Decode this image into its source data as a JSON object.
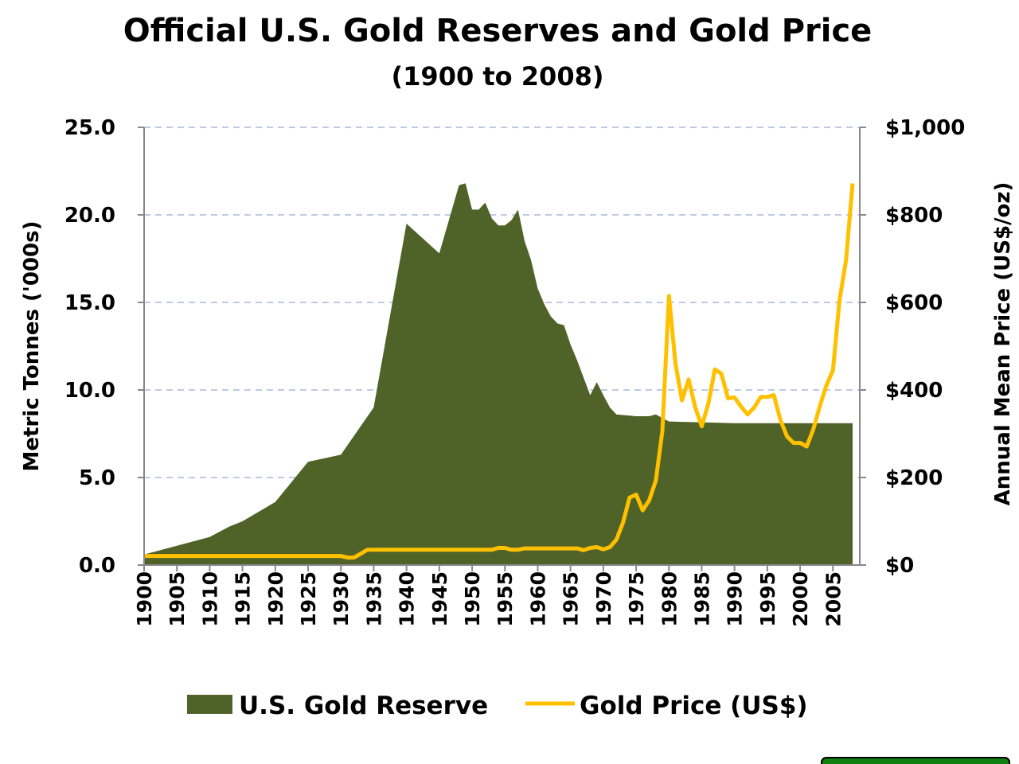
{
  "chart_data": {
    "type": "area+line",
    "title": "Official U.S. Gold Reserves and Gold Price",
    "subtitle": "(1900 to 2008)",
    "ylabel": "Metric Tonnes ('000s)",
    "y2label": "Annual Mean Price (US$/oz)",
    "xlim": [
      1900,
      2008
    ],
    "ylim": [
      0,
      25
    ],
    "y2lim": [
      0,
      1000
    ],
    "x_ticks": [
      "1900",
      "1905",
      "1910",
      "1915",
      "1920",
      "1925",
      "1930",
      "1935",
      "1940",
      "1945",
      "1950",
      "1955",
      "1960",
      "1965",
      "1970",
      "1975",
      "1980",
      "1985",
      "1990",
      "1995",
      "2000",
      "2005"
    ],
    "y_ticks": [
      "0.0",
      "5.0",
      "10.0",
      "15.0",
      "20.0",
      "25.0"
    ],
    "y2_ticks": [
      "$0",
      "$200",
      "$400",
      "$600",
      "$800",
      "$1,000"
    ],
    "grid": "horizontal dashed",
    "legend_placement": "bottom",
    "series": [
      {
        "name": "U.S. Gold Reserve",
        "type": "area",
        "axis": "left",
        "color": "#4f6228",
        "points": [
          [
            1900,
            0.6
          ],
          [
            1905,
            1.1
          ],
          [
            1910,
            1.6
          ],
          [
            1913,
            2.2
          ],
          [
            1915,
            2.5
          ],
          [
            1920,
            3.6
          ],
          [
            1925,
            5.9
          ],
          [
            1930,
            6.3
          ],
          [
            1935,
            9.0
          ],
          [
            1940,
            19.5
          ],
          [
            1945,
            17.8
          ],
          [
            1948,
            21.7
          ],
          [
            1949,
            21.8
          ],
          [
            1950,
            20.3
          ],
          [
            1951,
            20.3
          ],
          [
            1952,
            20.7
          ],
          [
            1953,
            19.8
          ],
          [
            1954,
            19.4
          ],
          [
            1955,
            19.4
          ],
          [
            1956,
            19.7
          ],
          [
            1957,
            20.3
          ],
          [
            1958,
            18.5
          ],
          [
            1959,
            17.4
          ],
          [
            1960,
            15.8
          ],
          [
            1961,
            14.9
          ],
          [
            1962,
            14.2
          ],
          [
            1963,
            13.8
          ],
          [
            1964,
            13.7
          ],
          [
            1965,
            12.6
          ],
          [
            1966,
            11.7
          ],
          [
            1967,
            10.7
          ],
          [
            1968,
            9.7
          ],
          [
            1969,
            10.45
          ],
          [
            1970,
            9.7
          ],
          [
            1971,
            9.0
          ],
          [
            1972,
            8.6
          ],
          [
            1975,
            8.5
          ],
          [
            1977,
            8.5
          ],
          [
            1978,
            8.6
          ],
          [
            1979,
            8.4
          ],
          [
            1980,
            8.2
          ],
          [
            1985,
            8.15
          ],
          [
            1990,
            8.1
          ],
          [
            2000,
            8.1
          ],
          [
            2008,
            8.1
          ]
        ]
      },
      {
        "name": "Gold Price (US$)",
        "type": "line",
        "axis": "right",
        "color": "#ffc000",
        "points": [
          [
            1900,
            20.67
          ],
          [
            1930,
            20.67
          ],
          [
            1931,
            17.1
          ],
          [
            1932,
            17.1
          ],
          [
            1933,
            25.6
          ],
          [
            1934,
            34.7
          ],
          [
            1935,
            35
          ],
          [
            1953,
            35
          ],
          [
            1954,
            39
          ],
          [
            1955,
            39
          ],
          [
            1956,
            35
          ],
          [
            1957,
            35
          ],
          [
            1958,
            38
          ],
          [
            1966,
            38
          ],
          [
            1967,
            34
          ],
          [
            1968,
            39
          ],
          [
            1969,
            41
          ],
          [
            1970,
            36
          ],
          [
            1971,
            41
          ],
          [
            1972,
            58
          ],
          [
            1973,
            97
          ],
          [
            1974,
            154
          ],
          [
            1975,
            161
          ],
          [
            1976,
            125
          ],
          [
            1977,
            148
          ],
          [
            1978,
            193
          ],
          [
            1979,
            306
          ],
          [
            1980,
            615
          ],
          [
            1981,
            460
          ],
          [
            1982,
            376
          ],
          [
            1983,
            424
          ],
          [
            1984,
            361
          ],
          [
            1985,
            317
          ],
          [
            1986,
            368
          ],
          [
            1987,
            447
          ],
          [
            1988,
            437
          ],
          [
            1989,
            381
          ],
          [
            1990,
            383
          ],
          [
            1991,
            362
          ],
          [
            1992,
            344
          ],
          [
            1993,
            360
          ],
          [
            1994,
            384
          ],
          [
            1995,
            384
          ],
          [
            1996,
            388
          ],
          [
            1997,
            331
          ],
          [
            1998,
            294
          ],
          [
            1999,
            279
          ],
          [
            2000,
            279
          ],
          [
            2001,
            271
          ],
          [
            2002,
            310
          ],
          [
            2003,
            363
          ],
          [
            2004,
            410
          ],
          [
            2005,
            445
          ],
          [
            2006,
            604
          ],
          [
            2007,
            697
          ],
          [
            2008,
            872
          ]
        ]
      }
    ]
  }
}
